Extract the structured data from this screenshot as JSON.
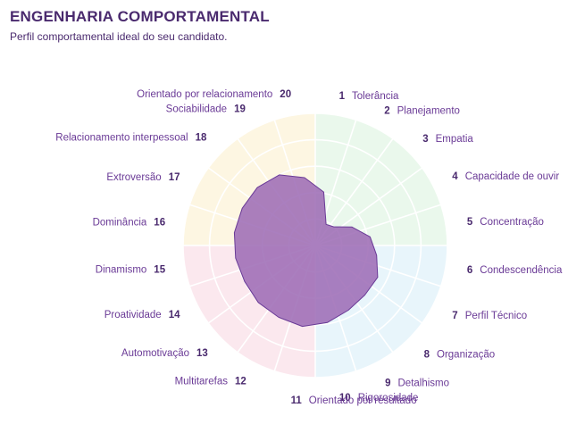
{
  "header": {
    "title": "ENGENHARIA COMPORTAMENTAL",
    "subtitle": "Perfil comportamental ideal do seu candidato."
  },
  "colors": {
    "text": "#4a2a6e",
    "label": "#6a3a96",
    "profile_fill": "#9b68b4",
    "profile_stroke": "#6a3a96",
    "sector_green": "#eaf8ec",
    "sector_blue": "#e8f5fb",
    "sector_pink": "#fbe8ee",
    "sector_yellow": "#fdf6e2"
  },
  "chart_data": {
    "type": "radar",
    "scale_max": 10,
    "rings": 5,
    "categories": [
      {
        "n": "1",
        "label": "Tolerância",
        "group": "green"
      },
      {
        "n": "2",
        "label": "Planejamento",
        "group": "green"
      },
      {
        "n": "3",
        "label": "Empatia",
        "group": "green"
      },
      {
        "n": "4",
        "label": "Capacidade de ouvir",
        "group": "green"
      },
      {
        "n": "5",
        "label": "Concentração",
        "group": "green"
      },
      {
        "n": "6",
        "label": "Condescendência",
        "group": "blue"
      },
      {
        "n": "7",
        "label": "Perfil Técnico",
        "group": "blue"
      },
      {
        "n": "8",
        "label": "Organização",
        "group": "blue"
      },
      {
        "n": "9",
        "label": "Detalhismo",
        "group": "blue"
      },
      {
        "n": "10",
        "label": "Rigorosidade",
        "group": "blue"
      },
      {
        "n": "11",
        "label": "Orientado por resultado",
        "group": "pink"
      },
      {
        "n": "12",
        "label": "Multitarefas",
        "group": "pink"
      },
      {
        "n": "13",
        "label": "Automotivação",
        "group": "pink"
      },
      {
        "n": "14",
        "label": "Proatividade",
        "group": "pink"
      },
      {
        "n": "15",
        "label": "Dinamismo",
        "group": "pink"
      },
      {
        "n": "16",
        "label": "Dominância",
        "group": "yellow"
      },
      {
        "n": "17",
        "label": "Extroversão",
        "group": "yellow"
      },
      {
        "n": "18",
        "label": "Relacionamento interpessoal",
        "group": "yellow"
      },
      {
        "n": "19",
        "label": "Sociabilidade",
        "group": "yellow"
      },
      {
        "n": "20",
        "label": "Orientado por relacionamento",
        "group": "yellow"
      }
    ],
    "values": [
      4.1,
      1.8,
      2.0,
      3.1,
      4.2,
      4.7,
      5.3,
      5.3,
      5.5,
      5.9,
      6.2,
      6.1,
      6.1,
      6.0,
      6.1,
      6.2,
      6.2,
      6.2,
      6.0,
      5.2
    ]
  }
}
